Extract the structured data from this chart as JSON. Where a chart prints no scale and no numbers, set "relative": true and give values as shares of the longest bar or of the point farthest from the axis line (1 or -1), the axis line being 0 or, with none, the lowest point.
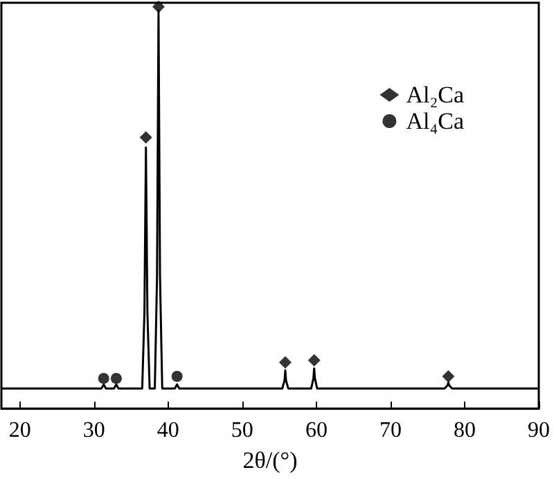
{
  "chart_data": {
    "type": "line",
    "xlabel": "2θ/(°)",
    "relative": true,
    "xlim": [
      17.5,
      90
    ],
    "xticks": [
      20,
      30,
      40,
      50,
      60,
      70,
      80,
      90
    ],
    "tick_labels": "x",
    "grid": false,
    "legend": "top right",
    "series": [
      {
        "color": "#000000",
        "marker": "none",
        "line_style": "solid",
        "x": [
          17.5,
          30,
          31.0,
          31.3,
          31.6,
          32.7,
          33.0,
          33.3,
          36.5,
          36.8,
          37.0,
          37.2,
          37.5,
          38.2,
          38.5,
          38.7,
          38.9,
          39.2,
          40.9,
          41.2,
          41.5,
          55.4,
          55.7,
          55.8,
          55.9,
          56.2,
          59.3,
          59.6,
          59.7,
          59.8,
          60.1,
          77.3,
          77.7,
          77.8,
          77.9,
          78.3,
          90
        ],
        "values": [
          0.05,
          0.05,
          0.05,
          0.06,
          0.05,
          0.05,
          0.06,
          0.05,
          0.05,
          0.24,
          0.65,
          0.24,
          0.05,
          0.05,
          0.33,
          0.99,
          0.33,
          0.05,
          0.05,
          0.06,
          0.05,
          0.05,
          0.07,
          0.095,
          0.07,
          0.05,
          0.05,
          0.075,
          0.1,
          0.075,
          0.05,
          0.05,
          0.058,
          0.065,
          0.058,
          0.05,
          0.05
        ]
      },
      {
        "type": "scatter",
        "name": "Al₂Ca",
        "color": "#000000",
        "marker": "diamond",
        "x": [
          37.0,
          38.7,
          55.8,
          59.7,
          77.8
        ],
        "values": [
          0.675,
          1.0,
          0.115,
          0.12,
          0.08
        ]
      },
      {
        "type": "scatter",
        "name": "Al₄Ca",
        "color": "#000000",
        "marker": "circle",
        "x": [
          31.3,
          33.0,
          41.2
        ],
        "values": [
          0.075,
          0.075,
          0.08
        ]
      }
    ]
  }
}
